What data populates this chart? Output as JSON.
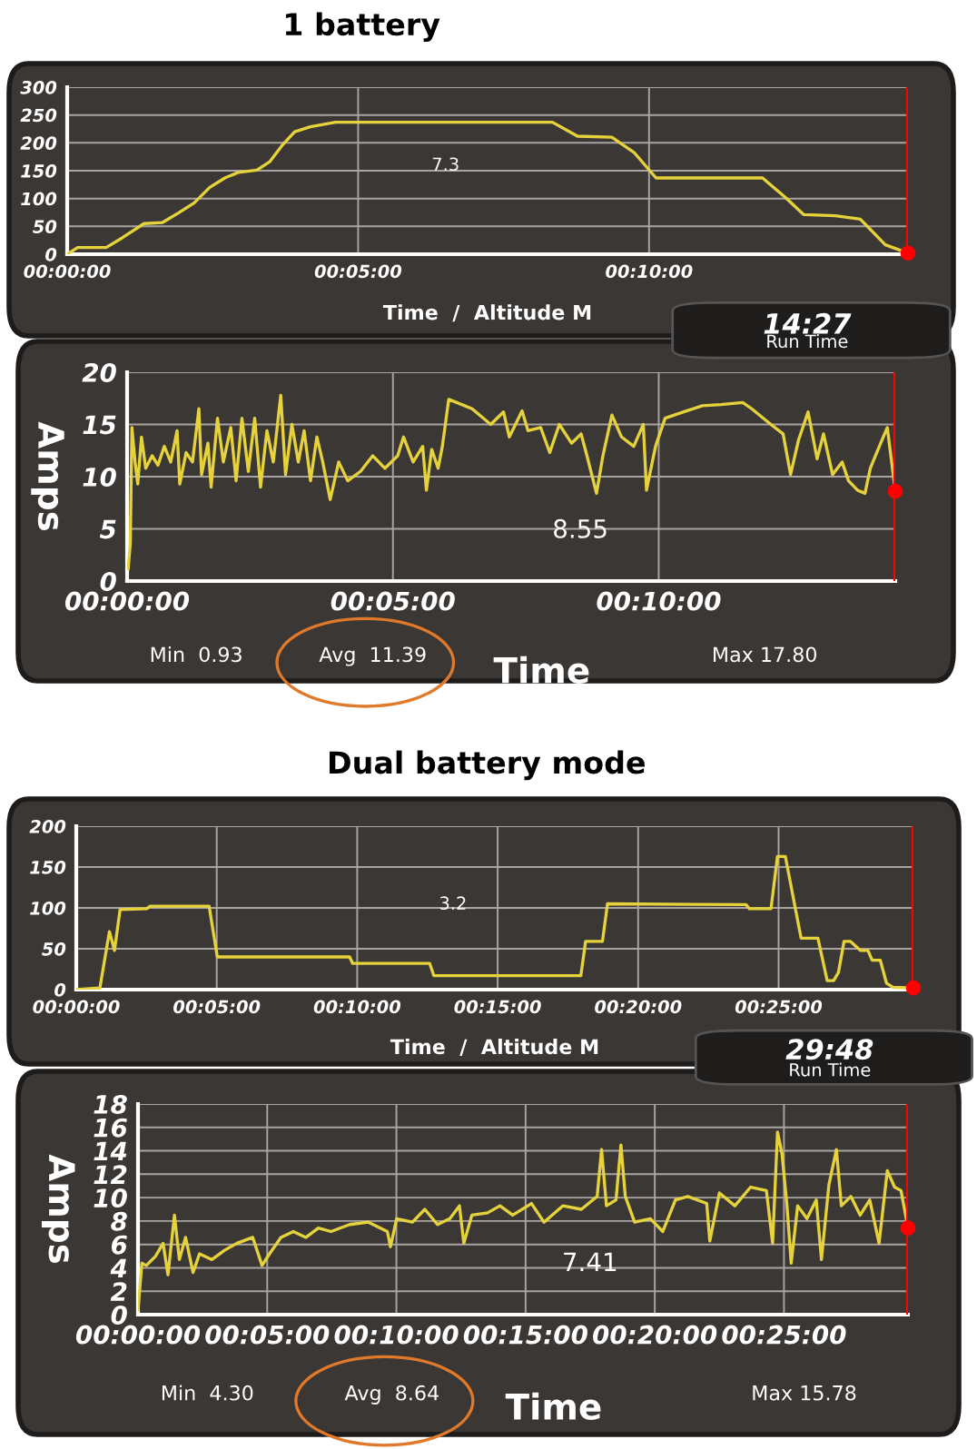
{
  "chart_data": [
    {
      "type": "line",
      "title": "1 battery",
      "xlabel": "Time  /  Altitude M",
      "annotations": [
        "7.3",
        "14:27",
        "Run Time"
      ],
      "x": [
        0,
        0.18,
        0.67,
        0.94,
        1.32,
        1.64,
        1.91,
        2.18,
        2.45,
        2.71,
        2.94,
        3.26,
        3.48,
        3.69,
        3.91,
        4.18,
        4.61,
        8.34,
        8.77,
        9.36,
        9.74,
        10.12,
        11.95,
        12.33,
        12.66,
        13.2,
        13.63,
        14.06,
        14.45
      ],
      "series": [
        {
          "color": "#e6d33c",
          "values": [
            0,
            12,
            12,
            29,
            55,
            57,
            74,
            92,
            120,
            137,
            147,
            151,
            166,
            195,
            220,
            229,
            237,
            237,
            212,
            210,
            183,
            137,
            137,
            103,
            71,
            69,
            63,
            17,
            2
          ]
        }
      ],
      "xlim": [
        0,
        14.45
      ],
      "ylim": [
        0,
        300
      ],
      "xticks": [
        {
          "value": 0,
          "label": "00:00:00"
        },
        {
          "value": 5,
          "label": "00:05:00"
        },
        {
          "value": 10,
          "label": "00:10:00"
        }
      ],
      "yticks": [
        0,
        50,
        100,
        150,
        200,
        250,
        300
      ],
      "grid": true,
      "ref_lines": [
        {
          "axis": "x",
          "value": 14.45,
          "color": "#ff0000"
        }
      ]
    },
    {
      "type": "line",
      "xlabel": "Time",
      "ylabel": "Amps",
      "annotations": [
        "8.55",
        "Min  0.93",
        "Avg  11.39",
        "Max 17.80"
      ],
      "x": [
        0.02,
        0.06,
        0.09,
        0.15,
        0.2,
        0.27,
        0.35,
        0.47,
        0.58,
        0.7,
        0.82,
        0.94,
        0.99,
        1.11,
        1.23,
        1.35,
        1.4,
        1.52,
        1.58,
        1.7,
        1.81,
        1.95,
        2.05,
        2.16,
        2.28,
        2.4,
        2.51,
        2.63,
        2.75,
        2.89,
        2.98,
        3.1,
        3.22,
        3.33,
        3.45,
        3.57,
        3.68,
        3.82,
        3.98,
        4.15,
        4.39,
        4.62,
        4.85,
        5.09,
        5.2,
        5.38,
        5.56,
        5.63,
        5.73,
        5.85,
        5.93,
        6.05,
        6.2,
        6.49,
        6.84,
        7.08,
        7.19,
        7.43,
        7.54,
        7.78,
        7.95,
        8.13,
        8.36,
        8.54,
        8.65,
        8.83,
        8.95,
        9.12,
        9.3,
        9.53,
        9.71,
        9.77,
        9.94,
        10.12,
        10.47,
        10.82,
        11.17,
        11.58,
        11.75,
        12.11,
        12.34,
        12.48,
        12.63,
        12.81,
        12.98,
        13.1,
        13.27,
        13.45,
        13.57,
        13.74,
        13.88,
        13.98,
        14.15,
        14.3,
        14.45
      ],
      "series": [
        {
          "color": "#e6d33c",
          "values": [
            1.2,
            3.6,
            14.7,
            11.4,
            9.3,
            13.8,
            10.8,
            12.0,
            11.1,
            12.9,
            11.4,
            14.4,
            9.3,
            12.3,
            11.4,
            16.5,
            10.2,
            13.2,
            9.0,
            15.6,
            11.4,
            14.7,
            9.6,
            15.6,
            10.5,
            15.6,
            9.0,
            14.4,
            11.4,
            17.8,
            10.2,
            15.0,
            11.4,
            14.4,
            9.6,
            13.8,
            11.4,
            7.8,
            11.4,
            9.6,
            10.5,
            12.0,
            10.8,
            12.0,
            13.8,
            11.4,
            12.9,
            8.7,
            12.6,
            10.8,
            12.9,
            17.4,
            17.1,
            16.5,
            15.0,
            16.2,
            13.8,
            16.3,
            14.4,
            14.7,
            12.3,
            15.0,
            13.2,
            14.1,
            12.0,
            8.4,
            12.0,
            15.9,
            13.8,
            12.9,
            15.0,
            8.7,
            12.9,
            15.6,
            16.2,
            16.8,
            16.9,
            17.1,
            16.5,
            15.0,
            14.1,
            10.2,
            13.5,
            16.2,
            11.7,
            14.1,
            10.2,
            11.4,
            9.6,
            8.7,
            8.4,
            10.8,
            12.9,
            14.7,
            8.6
          ]
        }
      ],
      "xlim": [
        0,
        14.45
      ],
      "ylim": [
        0,
        20
      ],
      "xticks": [
        {
          "value": 0,
          "label": "00:00:00"
        },
        {
          "value": 5,
          "label": "00:05:00"
        },
        {
          "value": 10,
          "label": "00:10:00"
        }
      ],
      "yticks": [
        0,
        5,
        10,
        15,
        20
      ],
      "grid": true,
      "ref_lines": [
        {
          "axis": "x",
          "value": 14.45,
          "color": "#ff0000"
        }
      ]
    },
    {
      "type": "line",
      "title": "Dual battery mode",
      "xlabel": "Time  /  Altitude M",
      "annotations": [
        "3.2",
        "29:48",
        "Run Time"
      ],
      "x": [
        0,
        0.84,
        1.18,
        1.36,
        1.56,
        2.51,
        2.62,
        4.73,
        5.02,
        9.73,
        9.84,
        12.58,
        12.73,
        17.96,
        18.13,
        18.73,
        18.91,
        23.84,
        23.96,
        24.73,
        24.96,
        25.24,
        25.8,
        26.4,
        26.73,
        26.96,
        27.13,
        27.33,
        27.56,
        27.91,
        28.18,
        28.33,
        28.62,
        28.84,
        29.07,
        29.8
      ],
      "series": [
        {
          "color": "#e6d33c",
          "values": [
            0,
            2,
            71,
            48,
            98,
            99,
            102,
            102,
            40,
            40,
            32,
            32,
            17,
            17,
            59,
            59,
            105,
            104,
            99,
            99,
            163,
            163,
            63,
            63,
            11,
            11,
            21,
            59,
            59,
            48,
            48,
            36,
            36,
            8,
            3,
            2
          ]
        }
      ],
      "xlim": [
        0,
        29.8
      ],
      "ylim": [
        0,
        200
      ],
      "xticks": [
        {
          "value": 0,
          "label": "00:00:00"
        },
        {
          "value": 5,
          "label": "00:05:00"
        },
        {
          "value": 10,
          "label": "00:10:00"
        },
        {
          "value": 15,
          "label": "00:15:00"
        },
        {
          "value": 20,
          "label": "00:20:00"
        },
        {
          "value": 25,
          "label": "00:25:00"
        }
      ],
      "yticks": [
        0,
        50,
        100,
        150,
        200
      ],
      "grid": true,
      "ref_lines": [
        {
          "axis": "x",
          "value": 29.8,
          "color": "#ff0000"
        }
      ]
    },
    {
      "type": "line",
      "xlabel": "Time",
      "ylabel": "Amps",
      "annotations": [
        "7.41",
        "Min  4.30",
        "Avg  8.64",
        "Max 15.78"
      ],
      "x": [
        0,
        0.15,
        0.32,
        0.68,
        0.97,
        1.16,
        1.41,
        1.6,
        1.84,
        2.13,
        2.38,
        2.86,
        3.35,
        3.83,
        4.44,
        4.8,
        5.09,
        5.53,
        6.01,
        6.5,
        6.98,
        7.47,
        8.19,
        8.92,
        9.65,
        9.77,
        10.01,
        10.62,
        11.1,
        11.59,
        12.07,
        12.44,
        12.61,
        12.92,
        13.53,
        14.01,
        14.5,
        15.23,
        15.71,
        16.44,
        17.16,
        17.77,
        17.94,
        18.13,
        18.5,
        18.69,
        18.86,
        19.22,
        19.83,
        20.31,
        20.8,
        21.28,
        22.01,
        22.13,
        22.5,
        23.1,
        23.71,
        24.32,
        24.56,
        24.75,
        24.92,
        25.11,
        25.28,
        25.53,
        25.89,
        26.25,
        26.45,
        26.74,
        27.03,
        27.22,
        27.59,
        27.95,
        28.32,
        28.68,
        29.0,
        29.28,
        29.53,
        29.8
      ],
      "series": [
        {
          "color": "#e6d33c",
          "values": [
            0.4,
            4.4,
            4.2,
            5.0,
            6.1,
            3.4,
            8.5,
            4.7,
            6.6,
            3.6,
            5.2,
            4.7,
            5.5,
            6.1,
            6.6,
            4.2,
            5.2,
            6.6,
            7.1,
            6.6,
            7.4,
            7.1,
            7.7,
            7.9,
            7.1,
            5.8,
            8.2,
            7.9,
            9.0,
            7.7,
            8.2,
            9.3,
            6.1,
            8.5,
            8.7,
            9.3,
            8.5,
            9.5,
            7.9,
            9.3,
            9.0,
            10.1,
            14.1,
            9.3,
            9.8,
            14.5,
            10.1,
            7.9,
            8.2,
            7.1,
            9.8,
            10.1,
            9.5,
            6.3,
            10.4,
            9.3,
            10.9,
            10.6,
            6.1,
            15.6,
            13.8,
            9.5,
            4.4,
            9.3,
            8.2,
            9.8,
            4.7,
            11.1,
            14.1,
            9.3,
            10.1,
            8.5,
            9.8,
            6.1,
            12.3,
            10.9,
            10.6,
            7.4
          ]
        }
      ],
      "xlim": [
        0,
        29.8
      ],
      "ylim": [
        0,
        18
      ],
      "xticks": [
        {
          "value": 0,
          "label": "00:00:00"
        },
        {
          "value": 5,
          "label": "00:05:00"
        },
        {
          "value": 10,
          "label": "00:10:00"
        },
        {
          "value": 15,
          "label": "00:15:00"
        },
        {
          "value": 20,
          "label": "00:20:00"
        },
        {
          "value": 25,
          "label": "00:25:00"
        }
      ],
      "yticks": [
        0,
        2,
        4,
        6,
        8,
        10,
        12,
        14,
        16,
        18
      ],
      "grid": true,
      "ref_lines": [
        {
          "axis": "x",
          "value": 29.8,
          "color": "#ff0000"
        }
      ]
    }
  ]
}
